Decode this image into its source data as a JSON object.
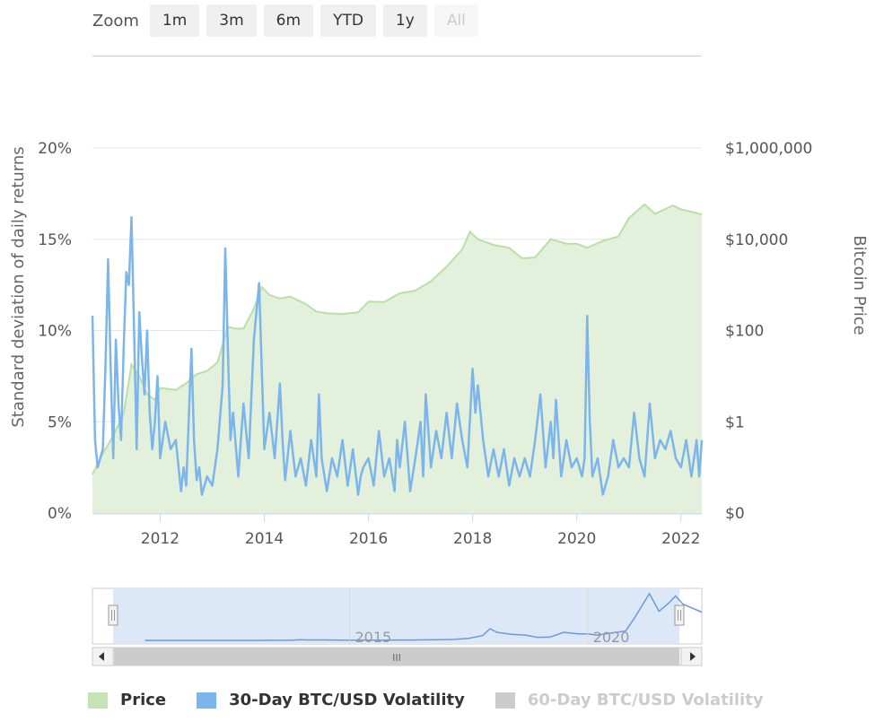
{
  "zoom": {
    "label": "Zoom",
    "buttons": [
      {
        "label": "1m",
        "enabled": true
      },
      {
        "label": "3m",
        "enabled": true
      },
      {
        "label": "6m",
        "enabled": true
      },
      {
        "label": "YTD",
        "enabled": true
      },
      {
        "label": "1y",
        "enabled": true
      },
      {
        "label": "All",
        "enabled": false
      }
    ]
  },
  "chart_data": {
    "type": "line",
    "xlabel": "",
    "x_range": [
      2010.7,
      2022.4
    ],
    "x_ticks": [
      "2012",
      "2014",
      "2016",
      "2018",
      "2020",
      "2022"
    ],
    "y_left": {
      "label": "Standard deviation of daily returns",
      "range": [
        0,
        20
      ],
      "ticks": [
        "0%",
        "5%",
        "10%",
        "15%",
        "20%"
      ]
    },
    "y_right": {
      "label": "Bitcoin Price",
      "scale": "log",
      "ticks": [
        "$0",
        "$1",
        "$100",
        "$10,000",
        "$1,000,000"
      ]
    },
    "grid": true,
    "legend_position": "bottom",
    "colors": {
      "price_fill": "#e3f1dc",
      "price_line": "#b9dfa7",
      "vol30": "#7cb5ec",
      "navigator_fill": "#dce8f7",
      "navigator_line": "#6a9bd6",
      "grid": "#e6e6e6"
    },
    "series": [
      {
        "name": "Price",
        "type": "area",
        "axis": "right",
        "x": [
          2010.7,
          2010.9,
          2011.1,
          2011.3,
          2011.45,
          2011.6,
          2011.75,
          2011.9,
          2012.0,
          2012.3,
          2012.5,
          2012.7,
          2012.9,
          2013.1,
          2013.3,
          2013.45,
          2013.6,
          2013.8,
          2013.95,
          2014.1,
          2014.3,
          2014.5,
          2014.8,
          2015.0,
          2015.2,
          2015.5,
          2015.8,
          2016.0,
          2016.3,
          2016.6,
          2016.9,
          2017.2,
          2017.5,
          2017.8,
          2017.95,
          2018.1,
          2018.4,
          2018.7,
          2018.95,
          2019.2,
          2019.5,
          2019.8,
          2020.0,
          2020.2,
          2020.5,
          2020.8,
          2021.0,
          2021.3,
          2021.5,
          2021.7,
          2021.85,
          2022.0,
          2022.2,
          2022.4
        ],
        "y": [
          0.07,
          0.2,
          0.5,
          1.5,
          18,
          10,
          4,
          3,
          5.5,
          5,
          7,
          11,
          13,
          20,
          120,
          110,
          110,
          300,
          900,
          600,
          500,
          550,
          380,
          260,
          240,
          230,
          250,
          430,
          420,
          650,
          750,
          1200,
          2500,
          6000,
          14500,
          10000,
          7500,
          6500,
          3800,
          4000,
          10000,
          8000,
          8000,
          6500,
          9200,
          11500,
          29000,
          58000,
          36000,
          46000,
          55000,
          45000,
          40000,
          35000
        ]
      },
      {
        "name": "30-Day BTC/USD Volatility",
        "type": "line",
        "axis": "left",
        "x": [
          2010.7,
          2010.75,
          2010.8,
          2010.9,
          2010.95,
          2011.0,
          2011.05,
          2011.1,
          2011.15,
          2011.2,
          2011.25,
          2011.3,
          2011.35,
          2011.4,
          2011.45,
          2011.5,
          2011.55,
          2011.6,
          2011.65,
          2011.7,
          2011.75,
          2011.8,
          2011.85,
          2011.9,
          2011.95,
          2012.0,
          2012.1,
          2012.2,
          2012.3,
          2012.4,
          2012.45,
          2012.5,
          2012.6,
          2012.65,
          2012.7,
          2012.75,
          2012.8,
          2012.9,
          2013.0,
          2013.1,
          2013.2,
          2013.25,
          2013.3,
          2013.35,
          2013.4,
          2013.5,
          2013.6,
          2013.7,
          2013.8,
          2013.9,
          2013.95,
          2014.0,
          2014.1,
          2014.2,
          2014.3,
          2014.35,
          2014.4,
          2014.5,
          2014.6,
          2014.7,
          2014.8,
          2014.9,
          2015.0,
          2015.05,
          2015.1,
          2015.2,
          2015.3,
          2015.4,
          2015.5,
          2015.6,
          2015.7,
          2015.8,
          2015.85,
          2015.9,
          2016.0,
          2016.1,
          2016.2,
          2016.3,
          2016.4,
          2016.5,
          2016.55,
          2016.6,
          2016.7,
          2016.8,
          2016.9,
          2017.0,
          2017.05,
          2017.1,
          2017.2,
          2017.3,
          2017.4,
          2017.5,
          2017.6,
          2017.7,
          2017.8,
          2017.9,
          2018.0,
          2018.05,
          2018.1,
          2018.2,
          2018.3,
          2018.4,
          2018.5,
          2018.6,
          2018.7,
          2018.8,
          2018.9,
          2019.0,
          2019.1,
          2019.2,
          2019.3,
          2019.4,
          2019.5,
          2019.55,
          2019.6,
          2019.7,
          2019.8,
          2019.9,
          2020.0,
          2020.1,
          2020.15,
          2020.2,
          2020.25,
          2020.3,
          2020.4,
          2020.5,
          2020.6,
          2020.7,
          2020.8,
          2020.9,
          2021.0,
          2021.1,
          2021.2,
          2021.3,
          2021.4,
          2021.5,
          2021.6,
          2021.7,
          2021.8,
          2021.9,
          2022.0,
          2022.1,
          2022.2,
          2022.3,
          2022.35,
          2022.4
        ],
        "y": [
          10.8,
          4.0,
          2.5,
          3.5,
          8.0,
          13.9,
          8.0,
          3.0,
          9.5,
          6.0,
          4.0,
          9.0,
          13.2,
          12.5,
          16.2,
          10.0,
          3.5,
          11.0,
          8.5,
          6.5,
          10.0,
          5.5,
          3.5,
          5.0,
          7.5,
          3.0,
          5.0,
          3.5,
          4.0,
          1.2,
          2.5,
          1.5,
          9.0,
          4.0,
          1.8,
          2.5,
          1.0,
          2.0,
          1.5,
          3.5,
          7.0,
          14.5,
          9.0,
          4.0,
          5.5,
          2.0,
          6.0,
          3.0,
          9.5,
          12.6,
          8.0,
          3.5,
          5.5,
          3.0,
          7.1,
          4.0,
          1.8,
          4.5,
          2.0,
          3.0,
          1.5,
          4.0,
          2.0,
          6.5,
          3.0,
          1.2,
          3.0,
          2.0,
          4.0,
          1.5,
          3.5,
          1.0,
          2.0,
          2.5,
          3.0,
          1.5,
          4.5,
          2.0,
          3.0,
          1.2,
          4.0,
          2.5,
          5.0,
          1.2,
          3.0,
          5.0,
          2.0,
          6.5,
          2.5,
          4.5,
          3.0,
          5.5,
          3.0,
          6.0,
          4.0,
          2.5,
          7.9,
          5.5,
          7.0,
          4.0,
          2.0,
          3.5,
          2.0,
          3.5,
          1.5,
          3.0,
          2.0,
          3.0,
          2.0,
          4.0,
          6.5,
          2.5,
          5.0,
          3.0,
          6.2,
          2.0,
          4.0,
          2.5,
          3.0,
          2.0,
          3.0,
          10.8,
          5.0,
          2.0,
          3.0,
          1.0,
          2.0,
          4.0,
          2.5,
          3.0,
          2.5,
          5.5,
          3.0,
          2.0,
          6.0,
          3.0,
          4.0,
          3.5,
          4.5,
          3.0,
          2.5,
          4.0,
          2.0,
          4.0,
          2.0,
          4.0
        ],
        "color": "#7cb5ec"
      },
      {
        "name": "60-Day BTC/USD Volatility",
        "type": "line",
        "axis": "left",
        "visible": false,
        "x": [],
        "y": []
      }
    ],
    "navigator": {
      "tick_labels": [
        "2015",
        "2020"
      ],
      "scrollbar_grip": "III"
    }
  },
  "legend": {
    "items": [
      {
        "name": "Price",
        "color": "#c5e3b5",
        "hidden": false
      },
      {
        "name": "30-Day BTC/USD Volatility",
        "color": "#7cb5ec",
        "hidden": false
      },
      {
        "name": "60-Day BTC/USD Volatility",
        "color": "#cccccc",
        "hidden": true
      }
    ]
  }
}
